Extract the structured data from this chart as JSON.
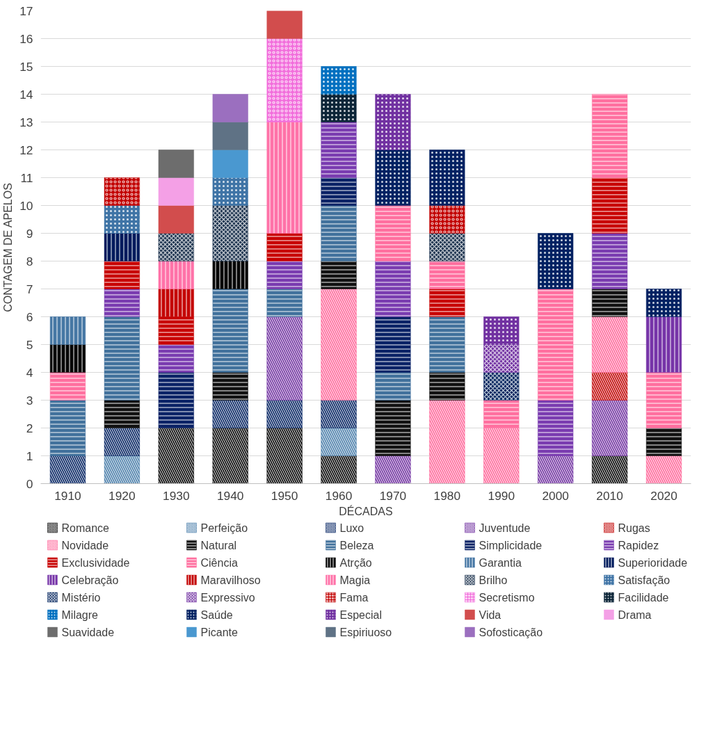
{
  "chart_data": {
    "type": "bar",
    "stacked": true,
    "xlabel": "DÉCADAS",
    "ylabel": "CONTAGEM DE APELOS",
    "categories": [
      "1910",
      "1920",
      "1930",
      "1940",
      "1950",
      "1960",
      "1970",
      "1980",
      "1990",
      "2000",
      "2010",
      "2020"
    ],
    "ylim": [
      0,
      17
    ],
    "yticks": [
      0,
      1,
      2,
      3,
      4,
      5,
      6,
      7,
      8,
      9,
      10,
      11,
      12,
      13,
      14,
      15,
      16,
      17
    ],
    "grid": "y",
    "legend": "bottom",
    "series": [
      {
        "name": "Romance",
        "color": "#000000",
        "values": [
          null,
          null,
          2,
          2,
          2,
          1,
          null,
          null,
          null,
          null,
          1,
          null
        ]
      },
      {
        "name": "Perfeição",
        "color": "#4a7eaa",
        "values": [
          null,
          1,
          null,
          null,
          null,
          1,
          null,
          null,
          null,
          null,
          null,
          null
        ]
      },
      {
        "name": "Luxo",
        "color": "#002060",
        "values": [
          1,
          1,
          null,
          1,
          1,
          1,
          null,
          null,
          null,
          null,
          null,
          null
        ]
      },
      {
        "name": "Juventude",
        "color": "#7030a0",
        "values": [
          null,
          null,
          null,
          null,
          3,
          null,
          1,
          null,
          null,
          1,
          2,
          null
        ]
      },
      {
        "name": "Rugas",
        "color": "#c00000",
        "values": [
          null,
          null,
          null,
          null,
          null,
          null,
          null,
          null,
          null,
          null,
          1,
          null
        ]
      },
      {
        "name": "Novidade",
        "color": "#ff6699",
        "values": [
          null,
          null,
          null,
          null,
          null,
          4,
          null,
          3,
          2,
          null,
          2,
          1
        ]
      },
      {
        "name": "Natural",
        "color": "#111111",
        "values": [
          null,
          1,
          null,
          1,
          null,
          1,
          2,
          1,
          null,
          null,
          1,
          1
        ]
      },
      {
        "name": "Beleza",
        "color": "#41719c",
        "values": [
          2,
          3,
          null,
          3,
          1,
          2,
          1,
          2,
          null,
          null,
          null,
          null
        ]
      },
      {
        "name": "Simplicidade",
        "color": "#0a2266",
        "values": [
          null,
          null,
          2,
          null,
          null,
          1,
          2,
          null,
          null,
          null,
          null,
          null
        ]
      },
      {
        "name": "Rapidez",
        "color": "#7a3cb0",
        "values": [
          null,
          1,
          1,
          null,
          1,
          2,
          2,
          null,
          null,
          2,
          2,
          null
        ]
      },
      {
        "name": "Exclusividade",
        "color": "#c80000",
        "values": [
          null,
          1,
          1,
          null,
          1,
          null,
          null,
          1,
          null,
          null,
          2,
          null
        ]
      },
      {
        "name": "Ciência",
        "color": "#ff6f9f",
        "values": [
          1,
          null,
          null,
          null,
          null,
          null,
          2,
          1,
          1,
          4,
          3,
          2
        ]
      },
      {
        "name": "Atrção",
        "color": "#050505",
        "values": [
          1,
          null,
          null,
          1,
          null,
          null,
          null,
          null,
          null,
          null,
          null,
          null
        ]
      },
      {
        "name": "Garantia",
        "color": "#4677a4",
        "values": [
          1,
          null,
          null,
          null,
          null,
          null,
          null,
          null,
          null,
          null,
          null,
          null
        ]
      },
      {
        "name": "Superioridade",
        "color": "#001a5c",
        "values": [
          null,
          1,
          null,
          null,
          null,
          null,
          null,
          null,
          null,
          null,
          null,
          null
        ]
      },
      {
        "name": "Celebração",
        "color": "#7634a8",
        "values": [
          null,
          null,
          null,
          null,
          null,
          null,
          null,
          null,
          null,
          null,
          null,
          2
        ]
      },
      {
        "name": "Maravilhoso",
        "color": "#c40404",
        "values": [
          null,
          null,
          1,
          null,
          null,
          null,
          null,
          null,
          null,
          null,
          null,
          null
        ]
      },
      {
        "name": "Magia",
        "color": "#ff72a8",
        "values": [
          null,
          null,
          1,
          null,
          4,
          null,
          null,
          null,
          null,
          null,
          null,
          null
        ]
      },
      {
        "name": "Brilho",
        "color": "#1f3550",
        "values": [
          null,
          null,
          1,
          2,
          null,
          null,
          null,
          1,
          null,
          null,
          null,
          null
        ]
      },
      {
        "name": "Satisfação",
        "color": "#3f74a6",
        "values": [
          null,
          1,
          null,
          1,
          null,
          null,
          null,
          null,
          null,
          null,
          null,
          null
        ]
      },
      {
        "name": "Mistério",
        "color": "#03245e",
        "values": [
          null,
          null,
          null,
          null,
          null,
          null,
          null,
          null,
          1,
          null,
          null,
          null
        ]
      },
      {
        "name": "Expressivo",
        "color": "#7232a2",
        "values": [
          null,
          null,
          null,
          null,
          null,
          null,
          null,
          null,
          1,
          null,
          null,
          null
        ]
      },
      {
        "name": "Fama",
        "color": "#c20202",
        "values": [
          null,
          1,
          null,
          null,
          null,
          null,
          null,
          1,
          null,
          null,
          null,
          null
        ]
      },
      {
        "name": "Secretismo",
        "color": "#f26fdc",
        "values": [
          null,
          null,
          null,
          null,
          3,
          null,
          null,
          null,
          null,
          null,
          null,
          null
        ]
      },
      {
        "name": "Facilidade",
        "color": "#0c2538",
        "values": [
          null,
          null,
          null,
          null,
          null,
          1,
          null,
          null,
          null,
          null,
          null,
          null
        ]
      },
      {
        "name": "Milagre",
        "color": "#0070c0",
        "values": [
          null,
          null,
          null,
          null,
          null,
          1,
          null,
          null,
          null,
          null,
          null,
          null
        ]
      },
      {
        "name": "Saúde",
        "color": "#012162",
        "values": [
          null,
          null,
          null,
          null,
          null,
          null,
          2,
          2,
          null,
          2,
          null,
          1
        ]
      },
      {
        "name": "Especial",
        "color": "#7131a1",
        "values": [
          null,
          null,
          null,
          null,
          null,
          null,
          2,
          null,
          1,
          null,
          null,
          null
        ]
      },
      {
        "name": "Vida",
        "color": "#d24d4d",
        "values": [
          null,
          null,
          1,
          null,
          1,
          null,
          null,
          null,
          null,
          null,
          null,
          null
        ]
      },
      {
        "name": "Drama",
        "color": "#f4a0e6",
        "values": [
          null,
          null,
          1,
          null,
          null,
          null,
          null,
          null,
          null,
          null,
          null,
          null
        ]
      },
      {
        "name": "Suavidade",
        "color": "#6d6d6d",
        "values": [
          null,
          null,
          1,
          null,
          null,
          null,
          null,
          null,
          null,
          null,
          null,
          null
        ]
      },
      {
        "name": "Picante",
        "color": "#4a98d0",
        "values": [
          null,
          null,
          null,
          1,
          null,
          null,
          null,
          null,
          null,
          null,
          null,
          null
        ]
      },
      {
        "name": "Espiriuoso",
        "color": "#5f7285",
        "values": [
          null,
          null,
          null,
          1,
          null,
          null,
          null,
          null,
          null,
          null,
          null,
          null
        ]
      },
      {
        "name": "Sofosticação",
        "color": "#9b6fbf",
        "values": [
          null,
          null,
          null,
          1,
          null,
          null,
          null,
          null,
          null,
          null,
          null,
          null
        ]
      }
    ]
  }
}
